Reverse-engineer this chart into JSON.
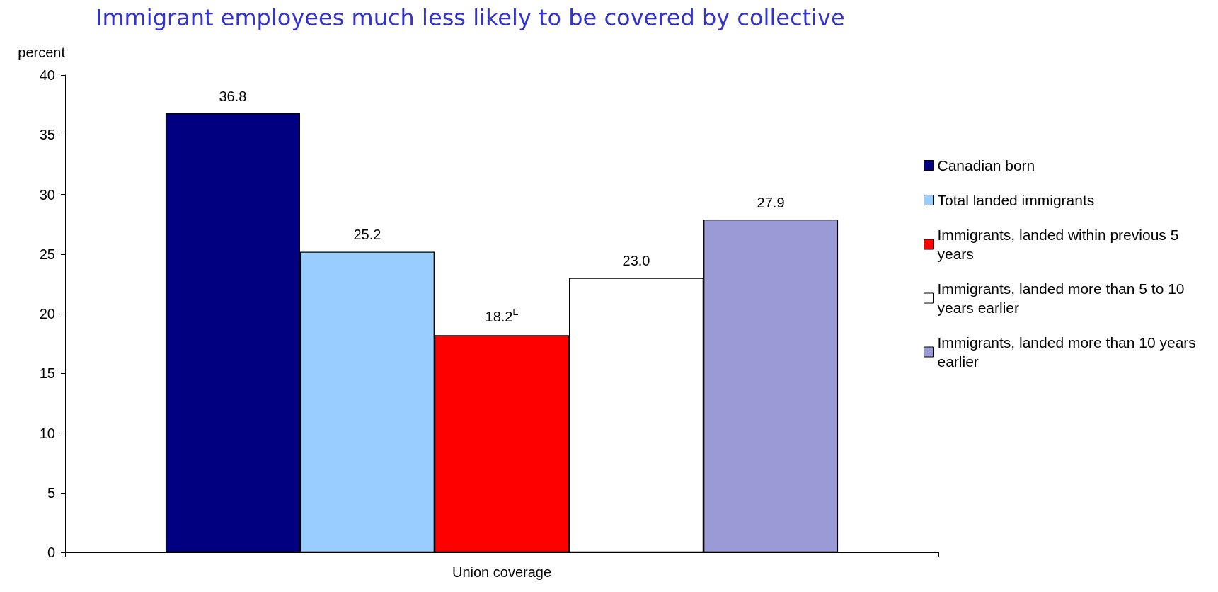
{
  "chart_data": {
    "type": "bar",
    "title": "Immigrant employees much less likely to be covered by collective",
    "ylabel": "percent",
    "categories": [
      "Union coverage"
    ],
    "series": [
      {
        "name": "Canadian born",
        "color": "#000080",
        "values": [
          36.8
        ],
        "value_labels": [
          "36.8"
        ]
      },
      {
        "name": "Total landed immigrants",
        "color": "#99ccff",
        "values": [
          25.2
        ],
        "value_labels": [
          "25.2"
        ]
      },
      {
        "name": "Immigrants, landed within previous 5 years",
        "color": "#ff0000",
        "values": [
          18.2
        ],
        "value_labels": [
          "18.2$^{E}$"
        ]
      },
      {
        "name": "Immigrants, landed more than 5 to 10 years earlier",
        "color": "#ffffff",
        "values": [
          23.0
        ],
        "value_labels": [
          "23.0"
        ]
      },
      {
        "name": "Immigrants, landed more than 10 years earlier",
        "color": "#9a9ad6",
        "values": [
          27.9
        ],
        "value_labels": [
          "27.9"
        ]
      }
    ],
    "ylim": [
      0,
      40
    ],
    "yticks": [
      0,
      5,
      10,
      15,
      20,
      25,
      30,
      35,
      40
    ],
    "grid": false,
    "legend": "right"
  }
}
